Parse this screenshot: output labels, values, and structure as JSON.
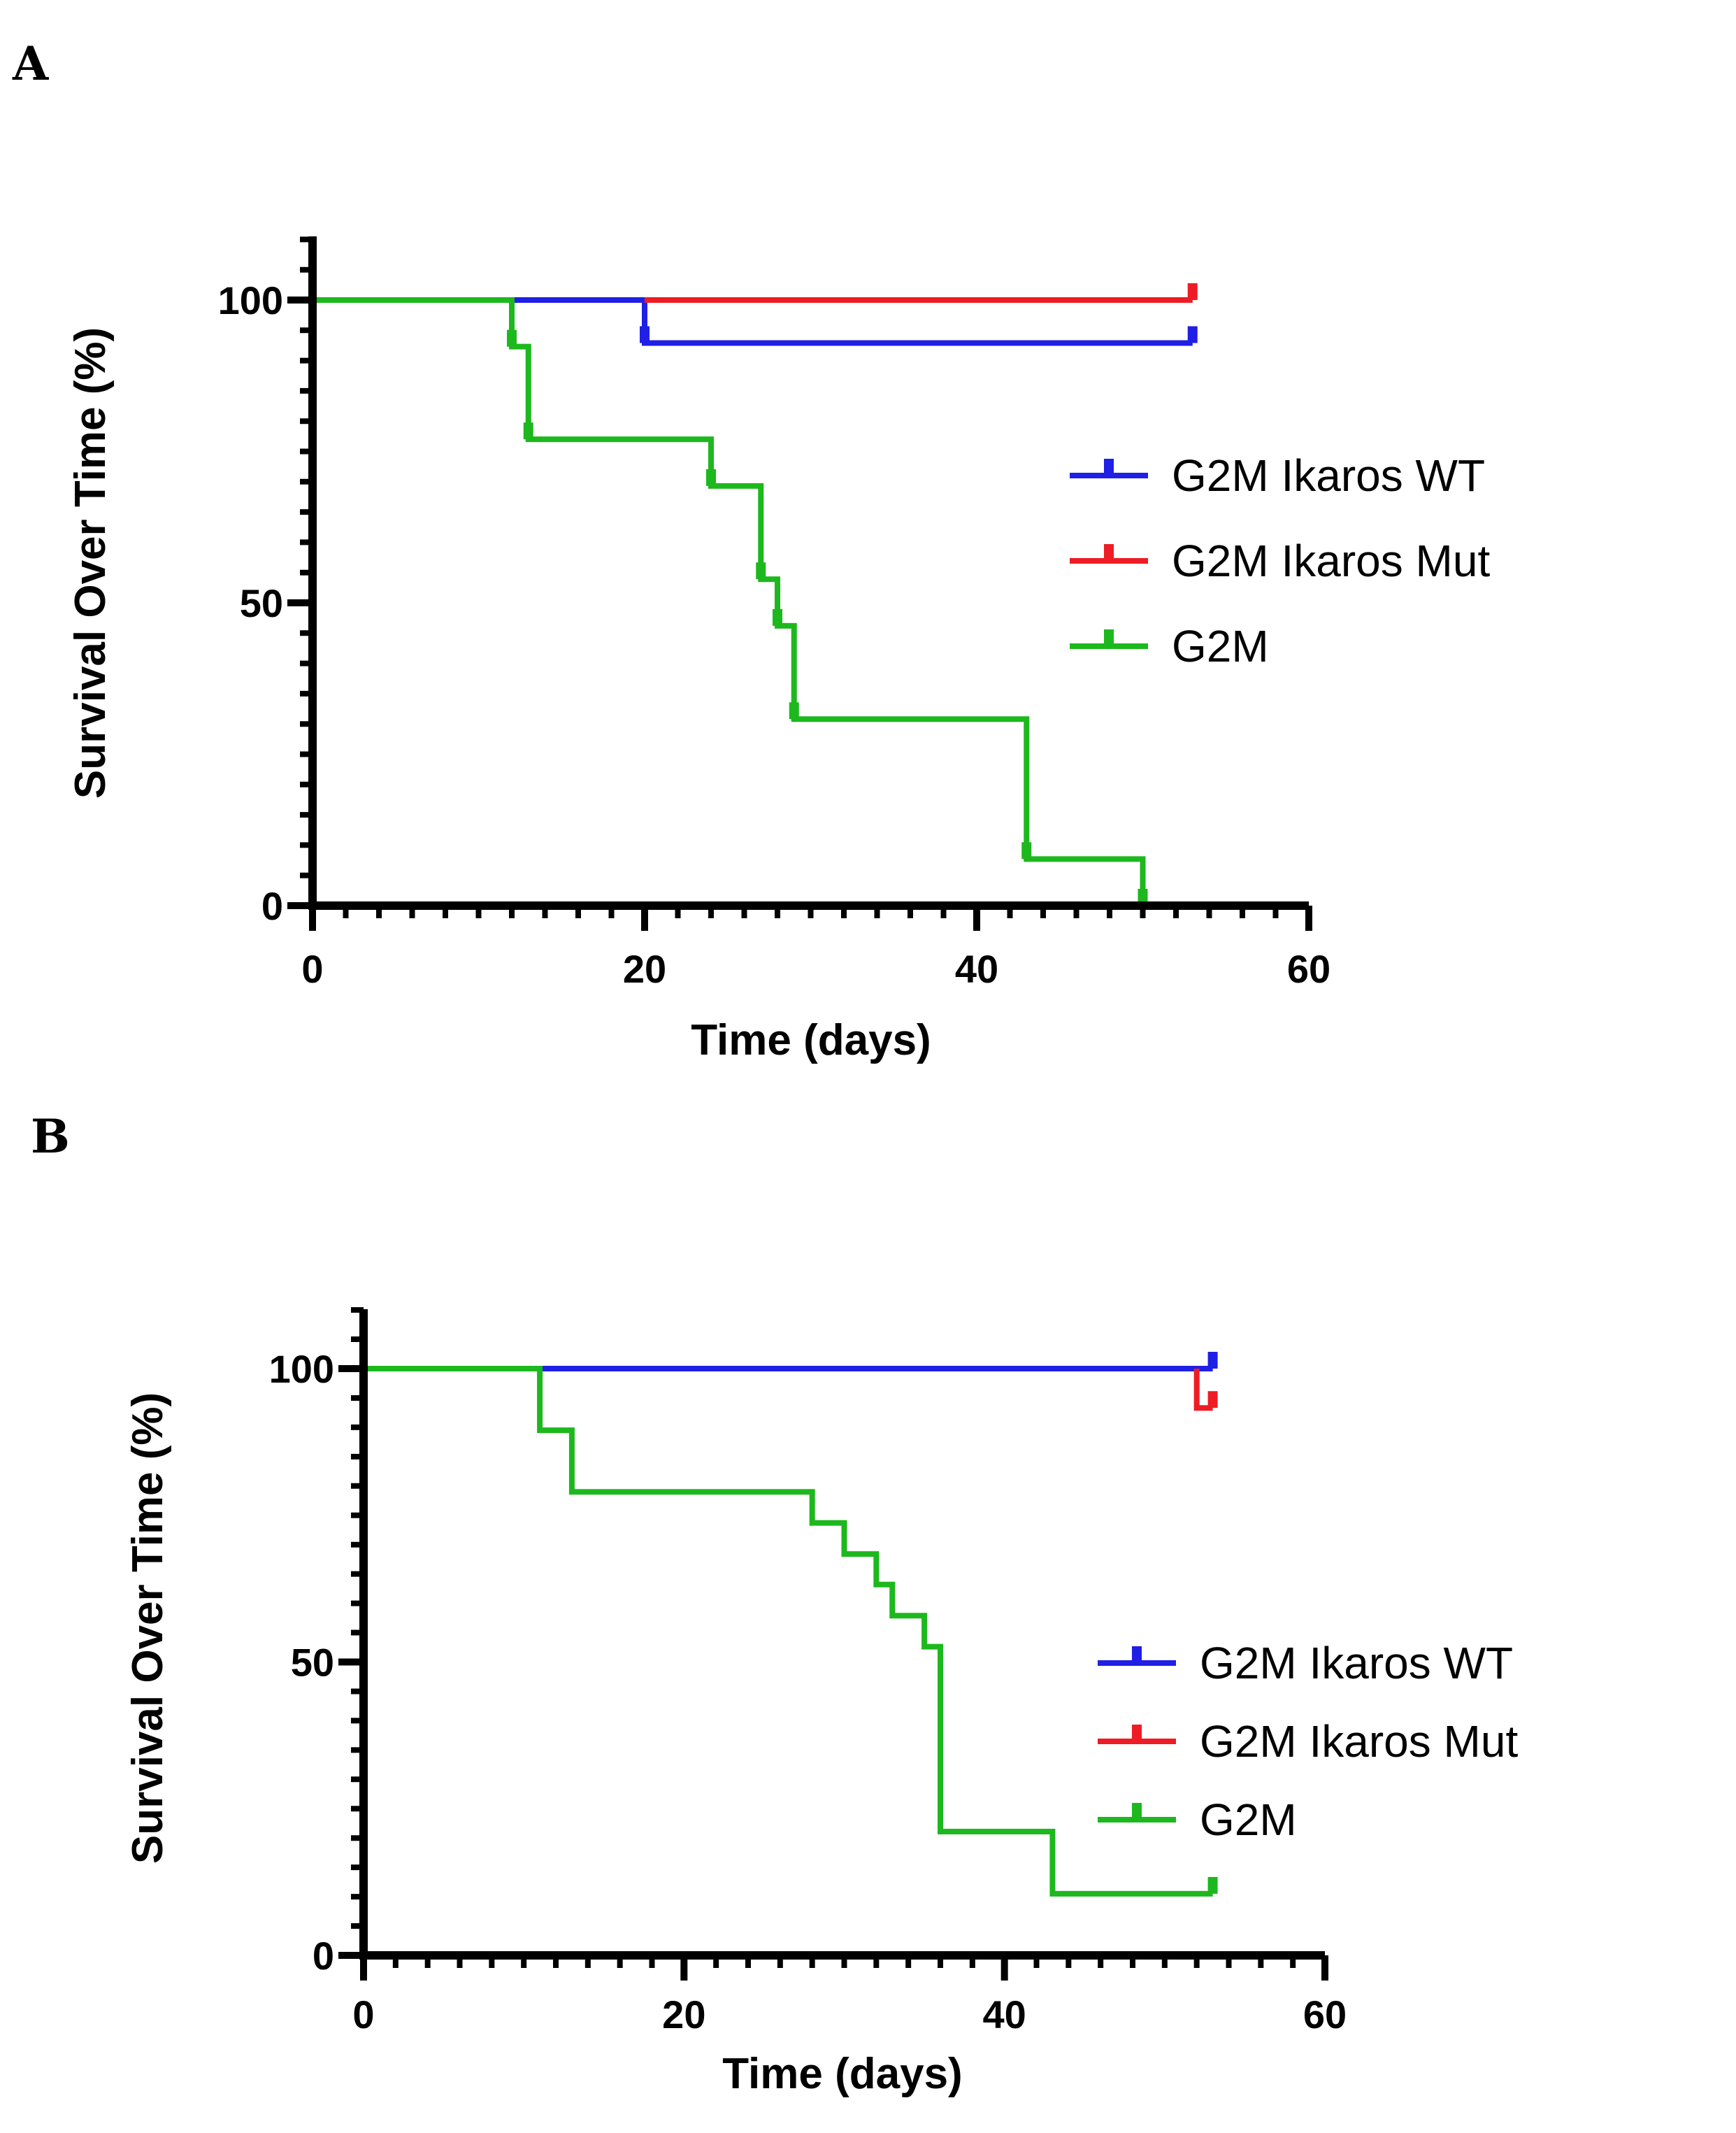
{
  "chart_data": [
    {
      "type": "line",
      "panel": "A",
      "title": "",
      "xlabel": "Time (days)",
      "ylabel": "Survival Over Time (%)",
      "xlim": [
        0,
        60
      ],
      "ylim": [
        0,
        110
      ],
      "xticks": [
        0,
        20,
        40,
        60
      ],
      "yticks": [
        0,
        50,
        100
      ],
      "legend": "right",
      "series": [
        {
          "name": "G2M Ikaros WT",
          "color": "#1f1fe6",
          "steps": [
            [
              0,
              100
            ],
            [
              20,
              100
            ],
            [
              20,
              92.9
            ],
            [
              53,
              92.9
            ]
          ],
          "censors": [
            [
              20,
              92.9
            ],
            [
              53,
              92.9
            ]
          ]
        },
        {
          "name": "G2M Ikaros Mut",
          "color": "#ee1c24",
          "steps": [
            [
              20,
              100
            ],
            [
              53,
              100
            ]
          ],
          "censors": [
            [
              53,
              100
            ]
          ]
        },
        {
          "name": "G2M",
          "color": "#1db81d",
          "steps": [
            [
              0,
              100
            ],
            [
              12,
              100
            ],
            [
              12,
              92.3
            ],
            [
              13,
              92.3
            ],
            [
              13,
              77
            ],
            [
              24,
              77
            ],
            [
              24,
              69.3
            ],
            [
              27,
              69.3
            ],
            [
              27,
              53.9
            ],
            [
              28,
              53.9
            ],
            [
              28,
              46.2
            ],
            [
              29,
              46.2
            ],
            [
              29,
              30.8
            ],
            [
              43,
              30.8
            ],
            [
              43,
              7.7
            ],
            [
              50,
              7.7
            ],
            [
              50,
              0
            ]
          ],
          "censors": [
            [
              12,
              92.3
            ],
            [
              13,
              77
            ],
            [
              24,
              69.3
            ],
            [
              27,
              53.9
            ],
            [
              28,
              46.2
            ],
            [
              29,
              30.8
            ],
            [
              43,
              7.7
            ],
            [
              50,
              0
            ]
          ]
        }
      ]
    },
    {
      "type": "line",
      "panel": "B",
      "title": "",
      "xlabel": "Time (days)",
      "ylabel": "Survival Over Time (%)",
      "xlim": [
        0,
        60
      ],
      "ylim": [
        0,
        110
      ],
      "xticks": [
        0,
        20,
        40,
        60
      ],
      "yticks": [
        0,
        50,
        100
      ],
      "legend": "right",
      "series": [
        {
          "name": "G2M Ikaros WT",
          "color": "#1f1fe6",
          "steps": [
            [
              11,
              100
            ],
            [
              53,
              100
            ]
          ],
          "censors": [
            [
              53,
              100
            ]
          ]
        },
        {
          "name": "G2M Ikaros Mut",
          "color": "#ee1c24",
          "steps": [
            [
              52,
              100
            ],
            [
              52,
              93.3
            ],
            [
              53,
              93.3
            ]
          ],
          "censors": [
            [
              53,
              93.3
            ]
          ]
        },
        {
          "name": "G2M",
          "color": "#1db81d",
          "steps": [
            [
              0,
              100
            ],
            [
              11,
              100
            ],
            [
              11,
              89.5
            ],
            [
              13,
              89.5
            ],
            [
              13,
              79
            ],
            [
              28,
              79
            ],
            [
              28,
              73.7
            ],
            [
              30,
              73.7
            ],
            [
              30,
              68.4
            ],
            [
              32,
              68.4
            ],
            [
              32,
              63.2
            ],
            [
              33,
              63.2
            ],
            [
              33,
              57.9
            ],
            [
              35,
              57.9
            ],
            [
              35,
              52.6
            ],
            [
              36,
              52.6
            ],
            [
              36,
              21.1
            ],
            [
              43,
              21.1
            ],
            [
              43,
              10.5
            ],
            [
              53,
              10.5
            ]
          ],
          "censors": [
            [
              53,
              10.5
            ]
          ]
        }
      ]
    }
  ]
}
